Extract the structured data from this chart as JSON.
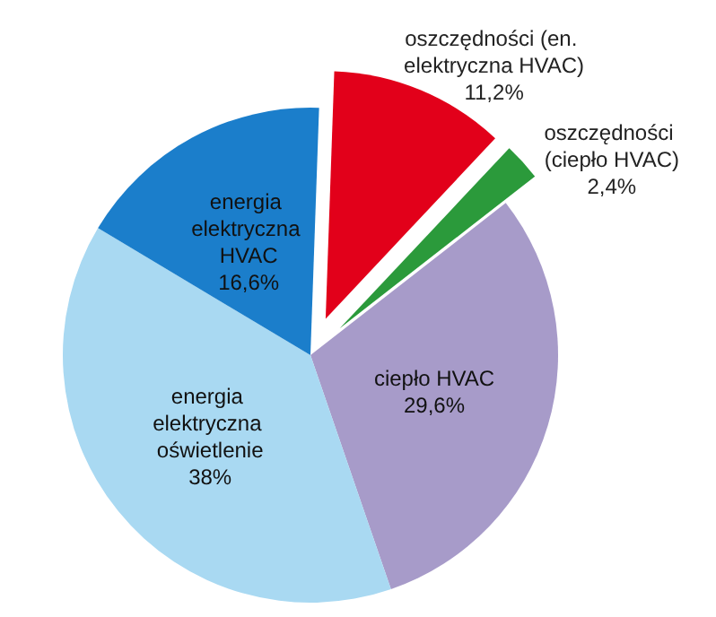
{
  "chart_data": {
    "type": "pie",
    "categories": [
      "oszczędności (en. elektryczna HVAC)",
      "oszczędności (ciepło HVAC)",
      "ciepło HVAC",
      "energia elektryczna oświetlenie",
      "energia elektryczna HVAC"
    ],
    "values": [
      11.2,
      2.4,
      29.6,
      38,
      16.6
    ],
    "value_labels": [
      "11,2%",
      "2,4%",
      "29,6%",
      "38%",
      "16,6%"
    ],
    "colors": [
      "#e2001a",
      "#2b9a3b",
      "#a79bc9",
      "#a9d9f2",
      "#1b7ecb"
    ],
    "legend": false
  }
}
